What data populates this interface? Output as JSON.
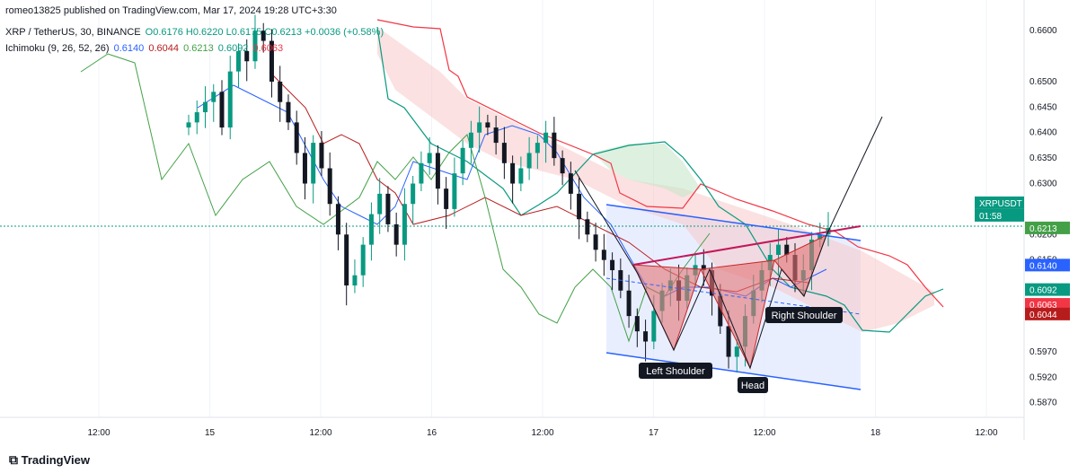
{
  "header": {
    "publisher": "romeo13825 published on TradingView.com, Mar 17, 2024 19:28 UTC+3:30",
    "symbol": "XRP / TetherUS, 30, BINANCE",
    "ohlc": "O0.6176 H0.6220 L0.6175 C0.6213 +0.0036 (+0.58%)",
    "indicator_name": "Ichimoku (9, 26, 52, 26)",
    "indicator_values": [
      "0.6140",
      "0.6044",
      "0.6213",
      "0.6092",
      "0.6063"
    ]
  },
  "brand": "TradingView",
  "colors": {
    "up": "#089981",
    "down": "#131722",
    "conversion": "#2962ff",
    "base": "#b71c1c",
    "lagging": "#43a047",
    "spanA": "#089981",
    "spanB": "#f23645",
    "pattern_fill": "#e57373",
    "channel": "#2962ff",
    "channel_fill": "#dbe3ff"
  },
  "chart_data": {
    "type": "candlestick",
    "symbol": "XRPUSDT",
    "interval": "30",
    "y_range": [
      0.585,
      0.6625
    ],
    "y_ticks": [
      "0.6600",
      "0.6500",
      "0.6450",
      "0.6400",
      "0.6350",
      "0.6300",
      "0.6200",
      "0.6150",
      "0.5970",
      "0.5920",
      "0.5870"
    ],
    "x_ticks": [
      "12:00",
      "15",
      "12:00",
      "16",
      "12:00",
      "17",
      "12:00",
      "18",
      "12:00"
    ],
    "price_labels": [
      {
        "text": "XRPUSDT",
        "value": 0.6213,
        "color": "#089981"
      },
      {
        "text": "01:58",
        "value": 0.6213,
        "color": "#089981"
      },
      {
        "text": "0.6213",
        "value": 0.6213,
        "color": "#43a047"
      },
      {
        "text": "0.6140",
        "value": 0.614,
        "color": "#2962ff"
      },
      {
        "text": "0.6092",
        "value": 0.6092,
        "color": "#089981"
      },
      {
        "text": "0.6063",
        "value": 0.6063,
        "color": "#f23645"
      },
      {
        "text": "0.6044",
        "value": 0.6044,
        "color": "#b71c1c"
      }
    ],
    "candles_close": [
      0.642,
      0.644,
      0.646,
      0.648,
      0.641,
      0.652,
      0.656,
      0.654,
      0.66,
      0.658,
      0.65,
      0.646,
      0.642,
      0.636,
      0.63,
      0.638,
      0.633,
      0.626,
      0.62,
      0.61,
      0.612,
      0.618,
      0.624,
      0.628,
      0.622,
      0.618,
      0.626,
      0.63,
      0.634,
      0.636,
      0.629,
      0.625,
      0.632,
      0.637,
      0.64,
      0.642,
      0.641,
      0.638,
      0.634,
      0.63,
      0.633,
      0.636,
      0.638,
      0.64,
      0.635,
      0.632,
      0.628,
      0.623,
      0.62,
      0.617,
      0.615,
      0.613,
      0.609,
      0.604,
      0.601,
      0.599,
      0.605,
      0.609,
      0.611,
      0.607,
      0.612,
      0.614,
      0.613,
      0.608,
      0.602,
      0.596,
      0.598,
      0.604,
      0.609,
      0.613,
      0.616,
      0.618,
      0.616,
      0.611,
      0.613,
      0.619,
      0.62,
      0.6213
    ],
    "annotations": [
      "Left Shoulder",
      "Head",
      "Right Shoulder"
    ]
  }
}
